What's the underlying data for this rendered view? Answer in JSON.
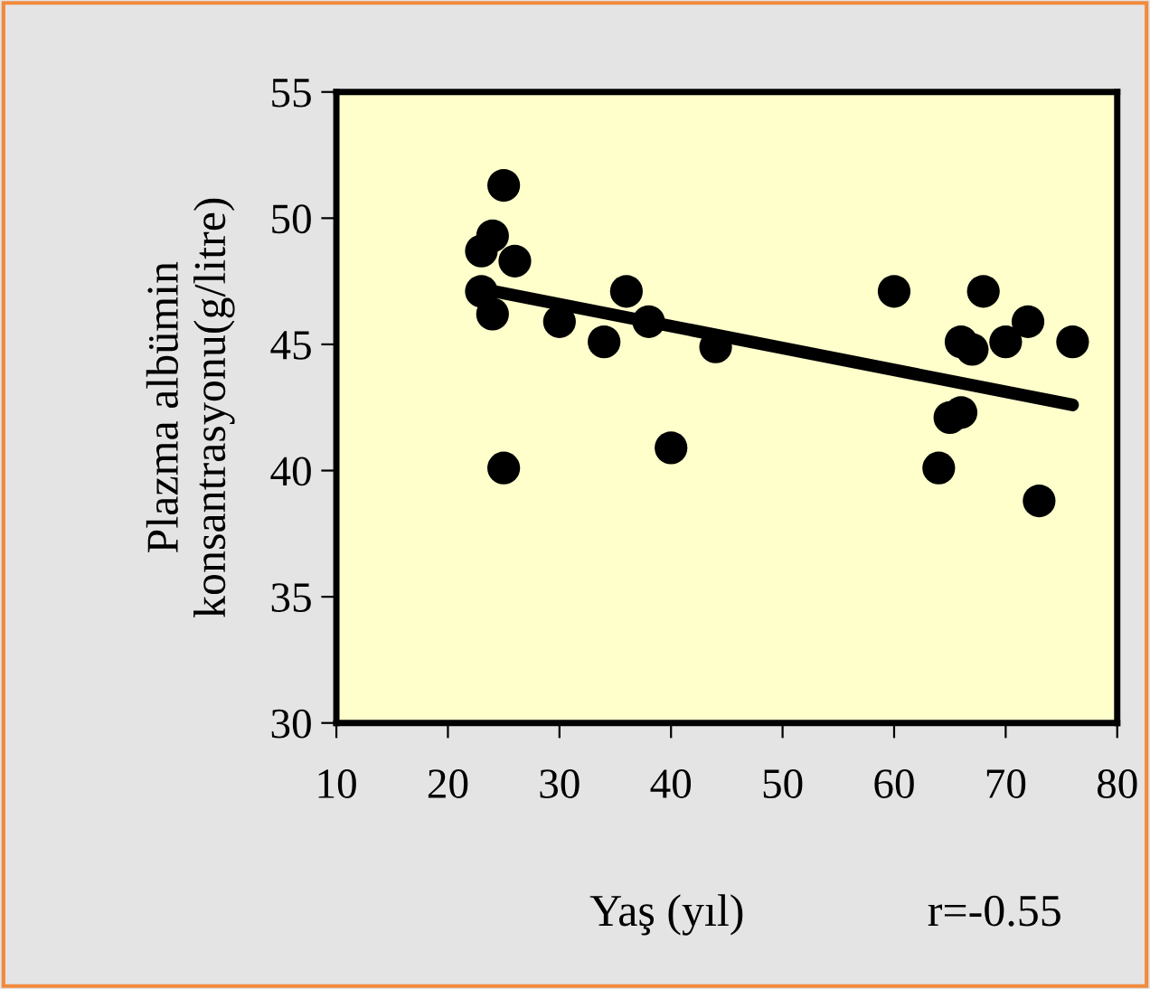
{
  "chart_data": {
    "type": "scatter",
    "xlabel": "Yaş (yıl)",
    "ylabel": "Plazma albümin\nkonsantrasyonu(g/litre)",
    "annotations": [
      "r=-0.55"
    ],
    "xlim": [
      10,
      80
    ],
    "ylim": [
      30,
      55
    ],
    "xticks": [
      10,
      20,
      30,
      40,
      50,
      60,
      70,
      80
    ],
    "yticks": [
      30,
      35,
      40,
      45,
      50,
      55
    ],
    "grid": false,
    "marker": "circle",
    "series": [
      {
        "color": "#000000",
        "x": [
          25,
          24,
          23,
          26,
          23,
          24,
          30,
          34,
          36,
          38,
          44,
          25,
          40,
          60,
          68,
          72,
          66,
          67,
          70,
          76,
          66,
          65,
          64,
          73
        ],
        "values": [
          51.3,
          49.3,
          48.7,
          48.3,
          47.1,
          46.2,
          45.9,
          45.1,
          47.1,
          45.9,
          44.9,
          40.1,
          40.9,
          47.1,
          47.1,
          45.9,
          45.1,
          44.8,
          45.1,
          45.1,
          42.3,
          42.1,
          40.1,
          38.8
        ]
      },
      {
        "type": "line",
        "color": "#000000",
        "marker": "none",
        "line_style": "solid",
        "x": [
          23,
          76
        ],
        "values": [
          47.2,
          42.6
        ]
      }
    ]
  }
}
